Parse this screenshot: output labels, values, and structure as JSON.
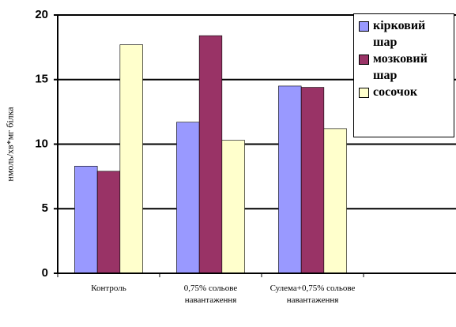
{
  "chart_data": {
    "type": "bar",
    "y_label": "нмоль/хв*мг білка",
    "categories": [
      "Контроль",
      "0,75% сольове навантаження",
      "Сулема+0,75% сольове навантаження",
      null
    ],
    "series": [
      {
        "name": "кірковий шар",
        "color": "#9999ff",
        "values": [
          8.3,
          11.7,
          14.5,
          null
        ]
      },
      {
        "name": "мозковий шар",
        "color": "#993366",
        "values": [
          7.9,
          18.4,
          14.4,
          null
        ]
      },
      {
        "name": "сосочок",
        "color": "#ffffcc",
        "values": [
          17.7,
          10.3,
          11.2,
          null
        ]
      }
    ],
    "ylim": [
      0,
      20
    ],
    "yticks": [
      0,
      5,
      10,
      15,
      20
    ],
    "grid": true
  }
}
